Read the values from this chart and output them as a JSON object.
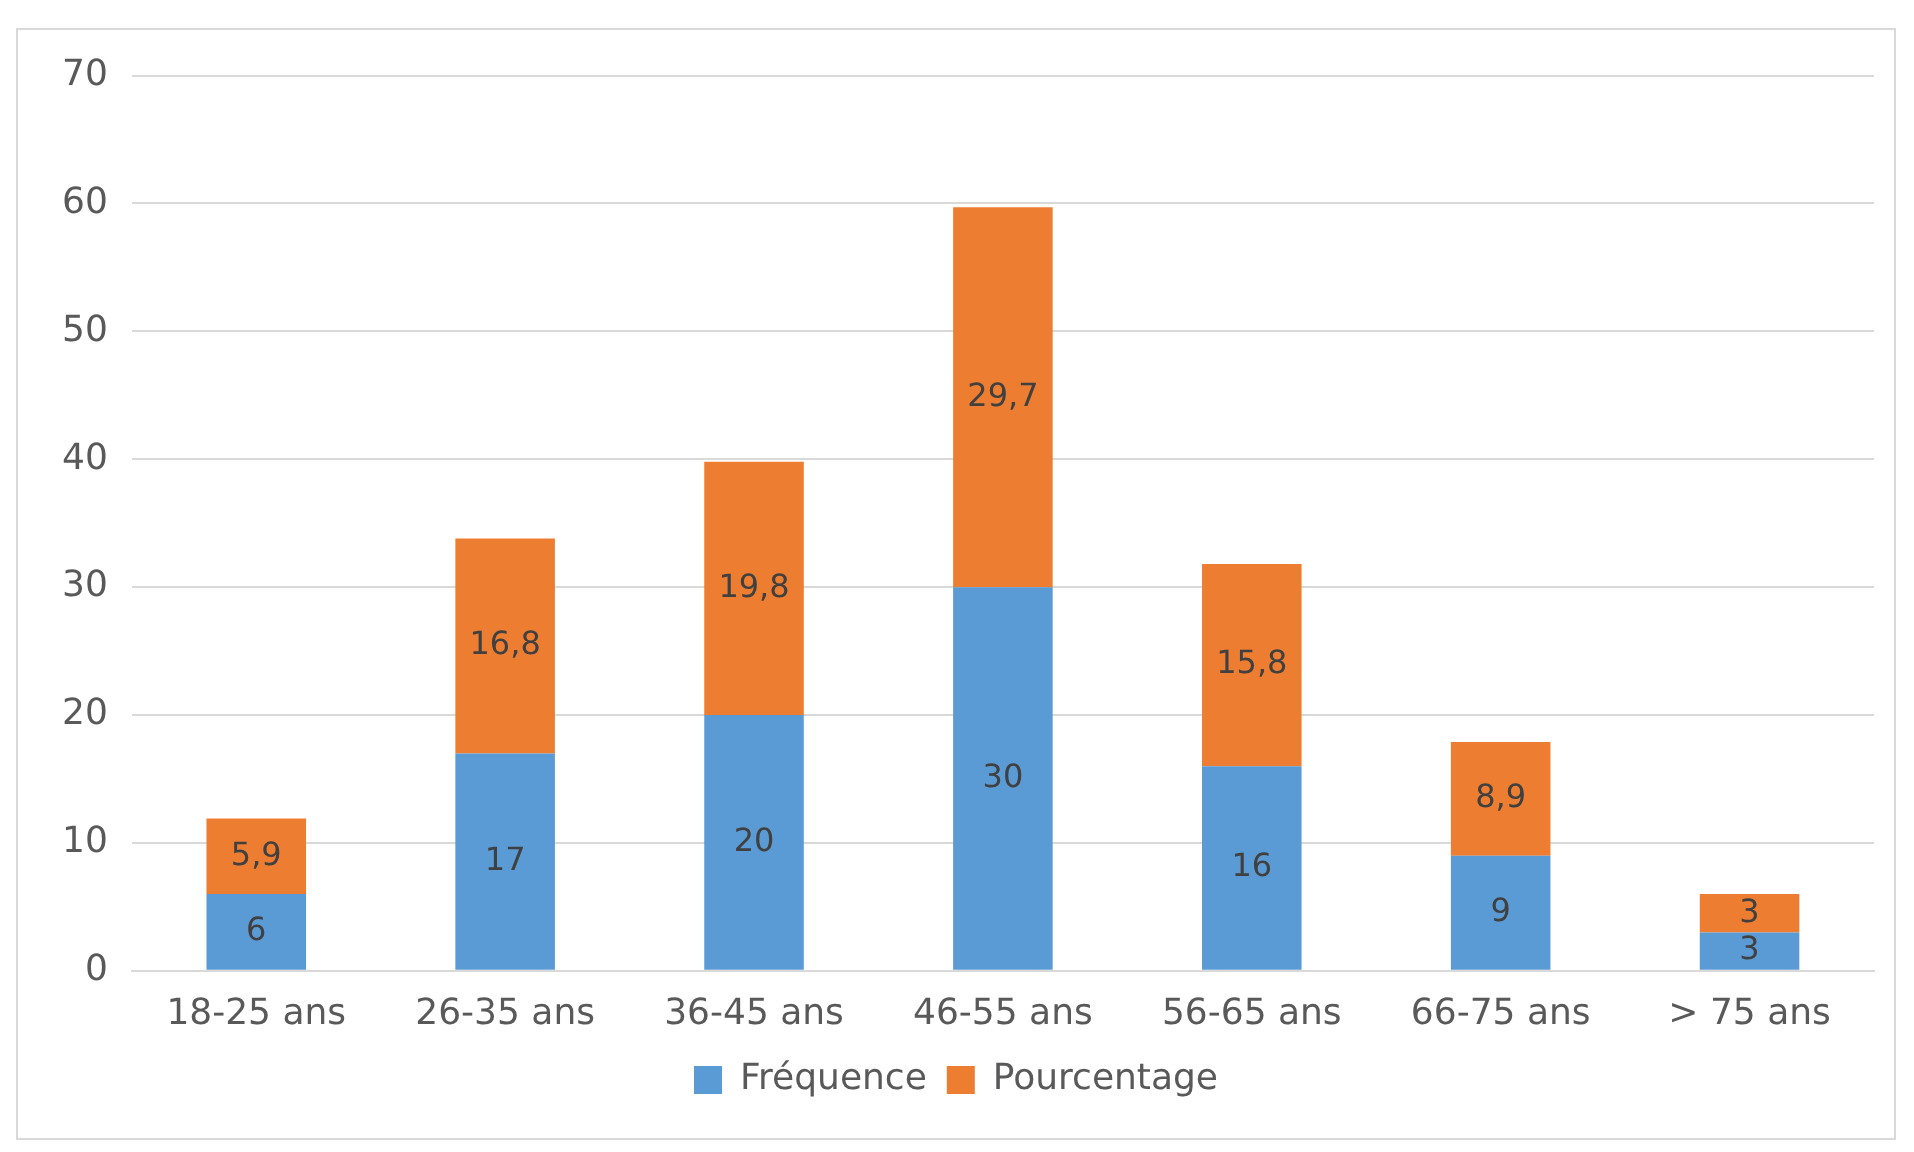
{
  "chart_data": {
    "type": "bar",
    "stacked": true,
    "categories": [
      "18-25 ans",
      "26-35 ans",
      "36-45 ans",
      "46-55 ans",
      "56-65 ans",
      "66-75 ans",
      "> 75 ans"
    ],
    "series": [
      {
        "name": "Fréquence",
        "color": "#5b9bd5",
        "values": [
          6,
          17,
          20,
          30,
          16,
          9,
          3
        ],
        "value_labels": [
          "6",
          "17",
          "20",
          "30",
          "16",
          "9",
          "3"
        ]
      },
      {
        "name": "Pourcentage",
        "color": "#ed7d31",
        "values": [
          5.9,
          16.8,
          19.8,
          29.7,
          15.8,
          8.9,
          3
        ],
        "value_labels": [
          "5,9",
          "16,8",
          "19,8",
          "29,7",
          "15,8",
          "8,9",
          "3"
        ]
      }
    ],
    "ylim": [
      0,
      70
    ],
    "yticks": [
      0,
      10,
      20,
      30,
      40,
      50,
      60,
      70
    ],
    "grid": "y",
    "legend": "bottom"
  }
}
